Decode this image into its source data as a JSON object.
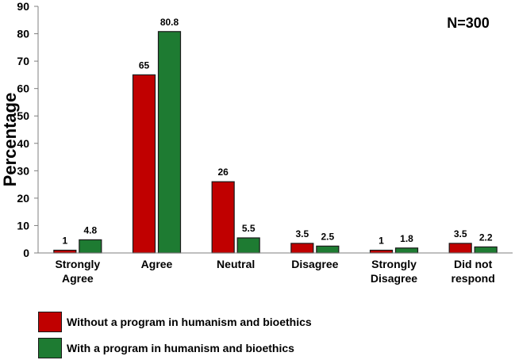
{
  "chart_data": {
    "type": "bar",
    "title": "",
    "annotation": "N=300",
    "xlabel": "",
    "ylabel": "Percentage",
    "ylim": [
      0,
      90
    ],
    "yticks": [
      "0",
      "10",
      "20",
      "30",
      "40",
      "50",
      "60",
      "70",
      "80",
      "90"
    ],
    "categories": [
      [
        "Strongly",
        "Agree"
      ],
      [
        "Agree"
      ],
      [
        "Neutral"
      ],
      [
        "Disagree"
      ],
      [
        "Strongly",
        "Disagree"
      ],
      [
        "Did not",
        "respond"
      ]
    ],
    "series": [
      {
        "name": "Without a program in humanism and bioethics",
        "color": "#c00000",
        "values": [
          1,
          65,
          26,
          3.5,
          1,
          3.5
        ],
        "labels": [
          "1",
          "65",
          "26",
          "3.5",
          "1",
          "3.5"
        ]
      },
      {
        "name": "With a program in humanism and bioethics",
        "color": "#1e7b32",
        "values": [
          4.8,
          80.8,
          5.5,
          2.5,
          1.8,
          2.2
        ],
        "labels": [
          "4.8",
          "80.8",
          "5.5",
          "2.5",
          "1.8",
          "2.2"
        ]
      }
    ],
    "grid": false,
    "legend_position": "bottom-left"
  }
}
